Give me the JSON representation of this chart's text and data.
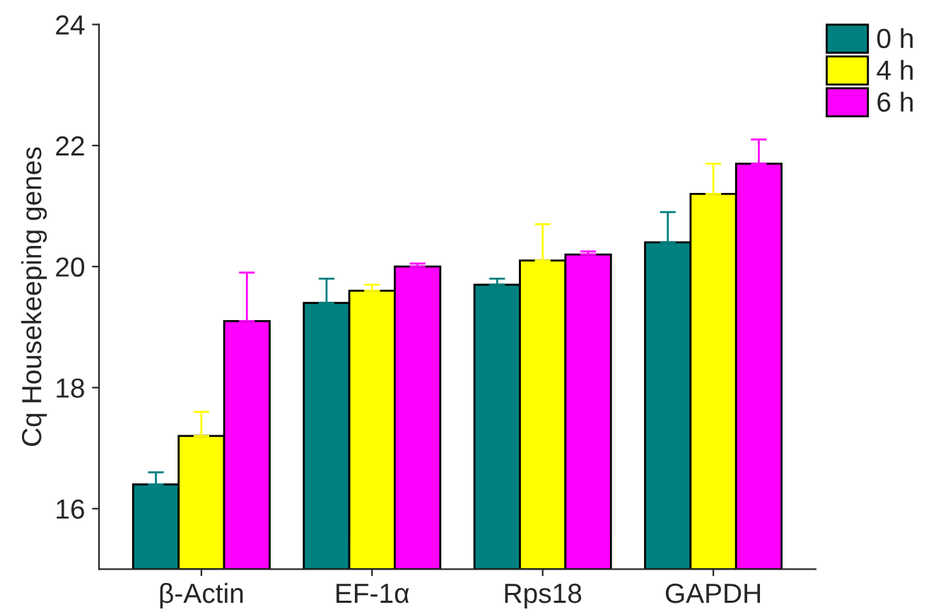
{
  "chart_data": {
    "type": "bar",
    "ylabel": "Cq Housekeeping genes",
    "categories": [
      "β-Actin",
      "EF-1α",
      "Rps18",
      "GAPDH"
    ],
    "series": [
      {
        "name": "0 h",
        "color": "#008080",
        "values": [
          16.4,
          19.4,
          19.7,
          20.4
        ],
        "errors": [
          [
            16.4,
            16.6
          ],
          [
            19.4,
            19.8
          ],
          [
            19.7,
            19.8
          ],
          [
            20.4,
            20.9
          ]
        ]
      },
      {
        "name": "4 h",
        "color": "#ffff00",
        "values": [
          17.2,
          19.6,
          20.1,
          21.2
        ],
        "errors": [
          [
            17.2,
            17.6
          ],
          [
            19.6,
            19.7
          ],
          [
            20.1,
            20.7
          ],
          [
            21.2,
            21.7
          ]
        ]
      },
      {
        "name": "6 h",
        "color": "#ff00ff",
        "values": [
          19.1,
          20.0,
          20.2,
          21.7
        ],
        "errors": [
          [
            19.1,
            19.9
          ],
          [
            20.0,
            20.05
          ],
          [
            20.2,
            20.25
          ],
          [
            21.7,
            22.1
          ]
        ]
      }
    ],
    "ylim": [
      15,
      24
    ],
    "yticks": [
      16,
      18,
      20,
      22,
      24
    ],
    "grid": false,
    "legend": "top right"
  }
}
